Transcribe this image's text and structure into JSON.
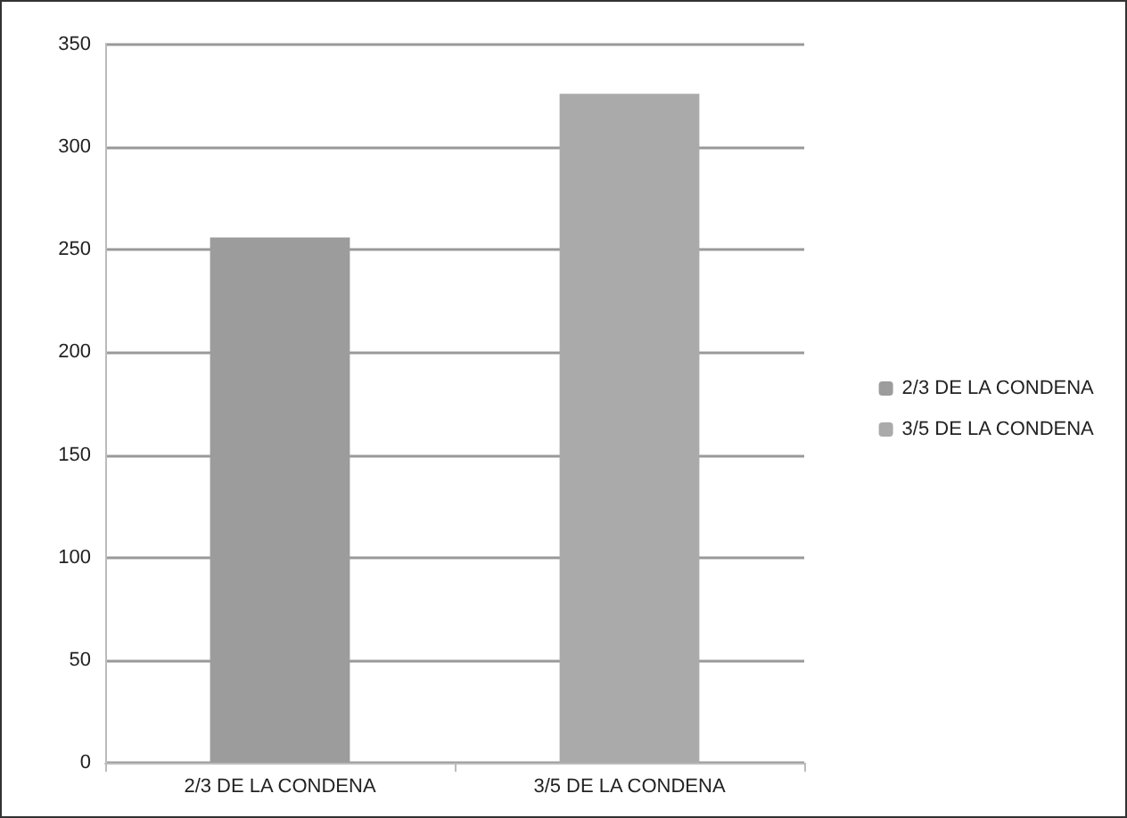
{
  "chart_data": {
    "type": "bar",
    "categories": [
      "2/3 DE LA CONDENA",
      "3/5 DE LA CONDENA"
    ],
    "series": [
      {
        "name": "2/3 DE LA CONDENA",
        "color": "#9c9c9c",
        "values": [
          256,
          null
        ]
      },
      {
        "name": "3/5 DE LA CONDENA",
        "color": "#aaaaaa",
        "values": [
          null,
          326
        ]
      }
    ],
    "stacked": true,
    "ylim": [
      0,
      350
    ],
    "yticks": [
      0,
      50,
      100,
      150,
      200,
      250,
      300,
      350
    ],
    "grid": "y",
    "legend": "right"
  }
}
